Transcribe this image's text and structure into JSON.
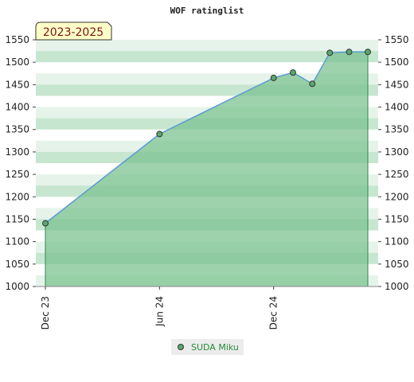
{
  "chart_data": {
    "type": "area",
    "title": "WOF ratinglist",
    "period_label": "2023-2025",
    "x_ticks": [
      "Dec 23",
      "Jun 24",
      "Dec 24"
    ],
    "x_tick_dates": [
      "2023-12-01",
      "2024-06-01",
      "2024-12-01"
    ],
    "x_range": [
      "2023-12-01",
      "2025-06-01"
    ],
    "ylim": [
      1000,
      1550
    ],
    "y_ticks": [
      1000,
      1050,
      1100,
      1150,
      1200,
      1250,
      1300,
      1350,
      1400,
      1450,
      1500,
      1550
    ],
    "series": [
      {
        "name": "SUDA Miku",
        "dates": [
          "2023-12-01",
          "2024-06-01",
          "2024-12-01",
          "2025-01-01",
          "2025-02-01",
          "2025-03-01",
          "2025-04-01",
          "2025-05-01"
        ],
        "values": [
          1141,
          1340,
          1465,
          1477,
          1452,
          1521,
          1523,
          1523
        ]
      }
    ],
    "legend_position": "bottom-center",
    "grid": false,
    "colors": {
      "line": "#5b9bd5",
      "fill": "#79c08e",
      "marker": "#5aa86c",
      "legend_text": "#2a8a3a",
      "period_bg": "#ffffc8",
      "period_text": "#7a1414"
    }
  }
}
